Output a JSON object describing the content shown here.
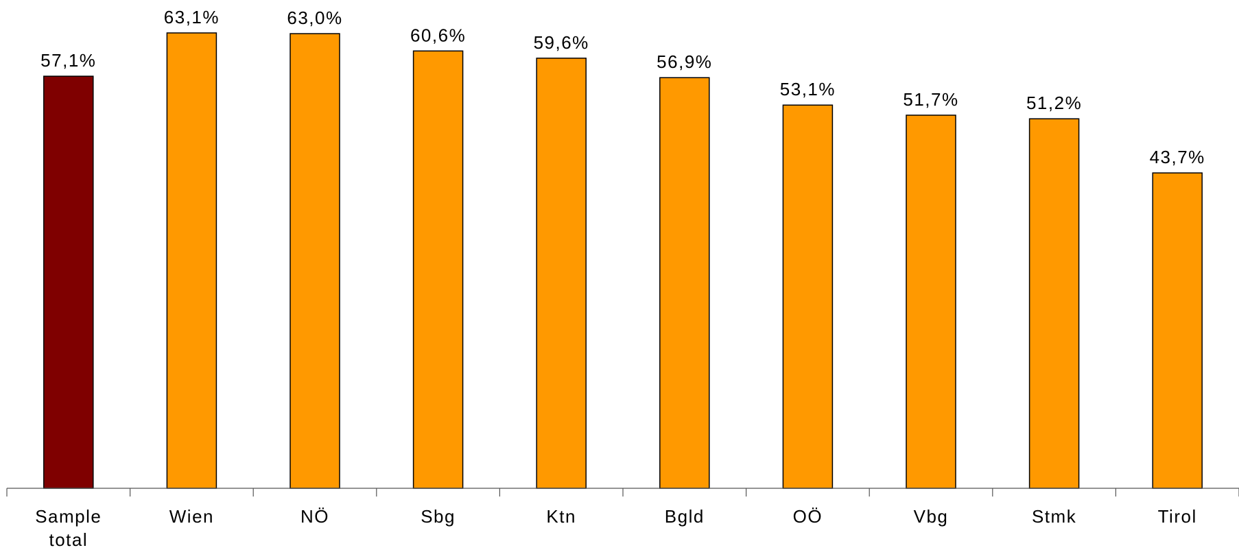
{
  "chart_data": {
    "type": "bar",
    "title": "",
    "xlabel": "",
    "ylabel": "",
    "categories": [
      [
        "Sample",
        "total"
      ],
      [
        "Wien"
      ],
      [
        "NÖ"
      ],
      [
        "Sbg"
      ],
      [
        "Ktn"
      ],
      [
        "Bgld"
      ],
      [
        "OÖ"
      ],
      [
        "Vbg"
      ],
      [
        "Stmk"
      ],
      [
        "Tirol"
      ]
    ],
    "values": [
      57.1,
      63.1,
      63.0,
      60.6,
      59.6,
      56.9,
      53.1,
      51.7,
      51.2,
      43.7
    ],
    "value_labels": [
      "57,1%",
      "63,1%",
      "63,0%",
      "60,6%",
      "59,6%",
      "56,9%",
      "53,1%",
      "51,7%",
      "51,2%",
      "43,7%"
    ],
    "bar_colors": [
      "#7f0000",
      "#ff9900",
      "#ff9900",
      "#ff9900",
      "#ff9900",
      "#ff9900",
      "#ff9900",
      "#ff9900",
      "#ff9900",
      "#ff9900"
    ],
    "ylim": [
      0,
      63.1
    ],
    "grid": false,
    "legend": "none"
  }
}
